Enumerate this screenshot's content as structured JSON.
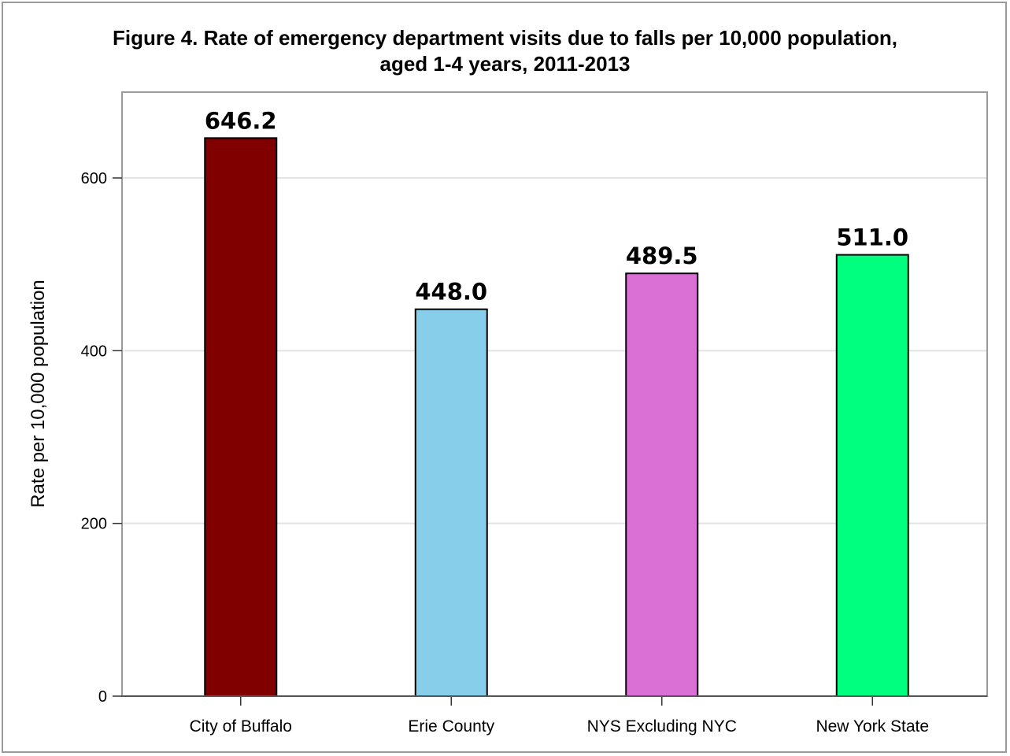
{
  "chart_data": {
    "type": "bar",
    "title": "Figure 4. Rate of emergency department visits due to falls per 10,000 population, aged 1-4 years, 2011-2013",
    "title_lines": [
      "Figure 4. Rate of emergency department visits due to falls per 10,000 population,",
      "aged 1-4 years, 2011-2013"
    ],
    "xlabel": "",
    "ylabel": "Rate per 10,000 population",
    "categories": [
      "City of Buffalo",
      "Erie County",
      "NYS Excluding NYC",
      "New York State"
    ],
    "values": [
      646.2,
      448.0,
      489.5,
      511.0
    ],
    "data_labels": [
      "646.2",
      "448.0",
      "489.5",
      "511.0"
    ],
    "colors": [
      "#800000",
      "#87CEEB",
      "#DA70D6",
      "#00FF7F"
    ],
    "ylim": [
      0,
      700
    ],
    "yticks": [
      0,
      200,
      400,
      600
    ],
    "grid": true,
    "legend": "none"
  }
}
